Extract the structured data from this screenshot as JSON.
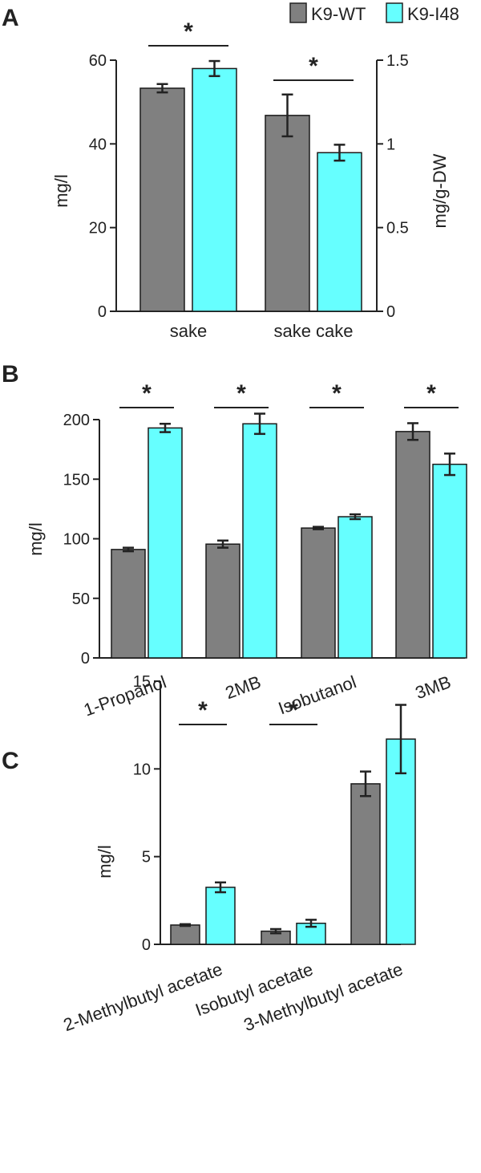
{
  "legend": [
    {
      "name": "K9-WT",
      "color": "#808080"
    },
    {
      "name": "K9-I48",
      "color": "#66ffff"
    }
  ],
  "chart_data": [
    {
      "panel": "A",
      "type": "bar",
      "categories": [
        "sake",
        "sake cake"
      ],
      "series": [
        {
          "name": "K9-WT",
          "values": [
            53.3,
            46.8
          ],
          "errors": [
            1.0,
            5.0
          ]
        },
        {
          "name": "K9-I48",
          "values": [
            58.0,
            37.9
          ],
          "errors": [
            1.8,
            1.9
          ]
        }
      ],
      "ylabel": "mg/l",
      "y2label": "mg/g-DW",
      "ylim": [
        0,
        60
      ],
      "yticks": [
        0,
        20,
        40,
        60
      ],
      "y2lim": [
        0,
        1.5
      ],
      "y2ticks": [
        0,
        0.5,
        1,
        1.5
      ],
      "y2tick_labels": [
        "0",
        "0.5",
        "1",
        "1.5"
      ],
      "significance": [
        {
          "category": "sake",
          "label": "*"
        },
        {
          "category": "sake cake",
          "label": "*"
        }
      ]
    },
    {
      "panel": "B",
      "type": "bar",
      "categories": [
        "1-Propanol",
        "2MB",
        "Isobutanol",
        "3MB"
      ],
      "series": [
        {
          "name": "K9-WT",
          "values": [
            91,
            95.5,
            109,
            190
          ],
          "errors": [
            1.5,
            3.0,
            1.0,
            7.0
          ]
        },
        {
          "name": "K9-I48",
          "values": [
            193,
            196.5,
            118.5,
            162.5
          ],
          "errors": [
            3.5,
            8.5,
            2.0,
            9.0
          ]
        }
      ],
      "ylabel": "mg/l",
      "ylim": [
        0,
        200
      ],
      "yticks": [
        0,
        50,
        100,
        150,
        200
      ],
      "significance": [
        {
          "category": "1-Propanol",
          "label": "*"
        },
        {
          "category": "2MB",
          "label": "*"
        },
        {
          "category": "Isobutanol",
          "label": "*"
        },
        {
          "category": "3MB",
          "label": "*"
        }
      ]
    },
    {
      "panel": "C",
      "type": "bar",
      "categories": [
        "2-Methylbutyl acetate",
        "Isobutyl acetate",
        "3-Methylbutyl acetate"
      ],
      "series": [
        {
          "name": "K9-WT",
          "values": [
            1.1,
            0.75,
            9.15
          ],
          "errors": [
            0.05,
            0.12,
            0.7
          ]
        },
        {
          "name": "K9-I48",
          "values": [
            3.25,
            1.2,
            11.7
          ],
          "errors": [
            0.28,
            0.2,
            1.95
          ]
        }
      ],
      "ylabel": "mg/l",
      "ylim": [
        0,
        15
      ],
      "yticks": [
        0,
        5,
        10,
        15
      ],
      "significance": [
        {
          "category": "2-Methylbutyl acetate",
          "label": "*"
        },
        {
          "category": "Isobutyl acetate",
          "label": "*"
        }
      ]
    }
  ]
}
